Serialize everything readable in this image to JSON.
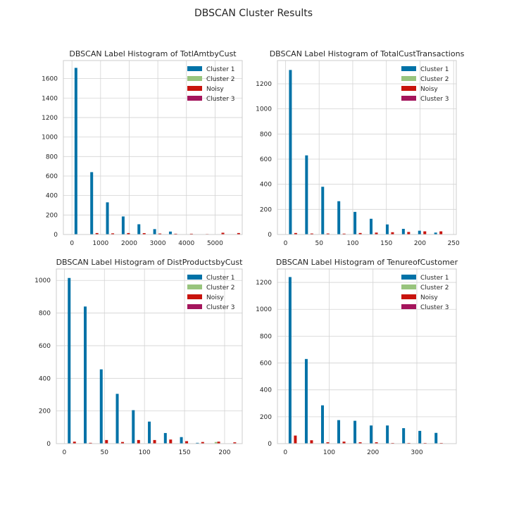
{
  "figure": {
    "suptitle": "DBSCAN Cluster Results"
  },
  "legend_colors": {
    "Cluster 1": "#0072a7",
    "Cluster 2": "#98c47d",
    "Noisy": "#c8130d",
    "Cluster 3": "#a4155c"
  },
  "chart_data": [
    {
      "type": "bar",
      "title": "DBSCAN Label Histogram of TotlAmtbyCust",
      "xlabel": "",
      "ylabel": "",
      "xlim": [
        -300,
        5950
      ],
      "ylim": [
        0,
        1785
      ],
      "xticks": [
        0,
        1000,
        2000,
        3000,
        4000,
        5000
      ],
      "yticks": [
        0,
        200,
        400,
        600,
        800,
        1000,
        1200,
        1400,
        1600
      ],
      "grid": true,
      "legend_position": "top-right",
      "legend": [
        "Cluster 1",
        "Cluster 2",
        "Noisy",
        "Cluster 3"
      ],
      "bins_x": [
        250,
        800,
        1350,
        1900,
        2450,
        3000,
        3550,
        4100,
        4650,
        5200,
        5750
      ],
      "series": [
        {
          "name": "Cluster 1",
          "values": [
            1710,
            640,
            330,
            185,
            105,
            55,
            30,
            0,
            0,
            0,
            0
          ]
        },
        {
          "name": "Cluster 2",
          "values": [
            0,
            0,
            0,
            0,
            0,
            0,
            0,
            0,
            0,
            0,
            0
          ]
        },
        {
          "name": "Noisy",
          "values": [
            0,
            15,
            12,
            15,
            14,
            10,
            8,
            8,
            5,
            18,
            15
          ]
        },
        {
          "name": "Cluster 3",
          "values": [
            0,
            0,
            0,
            0,
            0,
            0,
            0,
            0,
            0,
            0,
            0
          ]
        }
      ]
    },
    {
      "type": "bar",
      "title": "DBSCAN Label Histogram of TotalCustTransactions",
      "xlabel": "",
      "ylabel": "",
      "xlim": [
        -12,
        254
      ],
      "ylim": [
        0,
        1385
      ],
      "xticks": [
        0,
        50,
        100,
        150,
        200,
        250
      ],
      "yticks": [
        0,
        200,
        400,
        600,
        800,
        1000,
        1200
      ],
      "grid": true,
      "legend_position": "top-right",
      "legend": [
        "Cluster 1",
        "Cluster 2",
        "Noisy",
        "Cluster 3"
      ],
      "bins_x": [
        12,
        36,
        60,
        84,
        108,
        132,
        156,
        180,
        204,
        228
      ],
      "series": [
        {
          "name": "Cluster 1",
          "values": [
            1310,
            630,
            380,
            265,
            180,
            125,
            80,
            45,
            30,
            15
          ]
        },
        {
          "name": "Cluster 2",
          "values": [
            0,
            0,
            0,
            0,
            0,
            0,
            0,
            0,
            0,
            0
          ]
        },
        {
          "name": "Noisy",
          "values": [
            12,
            8,
            8,
            7,
            12,
            15,
            18,
            20,
            25,
            25
          ]
        },
        {
          "name": "Cluster 3",
          "values": [
            0,
            0,
            0,
            0,
            0,
            0,
            0,
            0,
            0,
            0
          ]
        }
      ]
    },
    {
      "type": "bar",
      "title": "DBSCAN Label Histogram of DistProductsbyCust",
      "xlabel": "",
      "ylabel": "",
      "xlim": [
        -10,
        222
      ],
      "ylim": [
        0,
        1070
      ],
      "xticks": [
        0,
        50,
        100,
        150,
        200
      ],
      "yticks": [
        0,
        200,
        400,
        600,
        800,
        1000
      ],
      "grid": true,
      "legend_position": "top-right",
      "legend": [
        "Cluster 1",
        "Cluster 2",
        "Noisy",
        "Cluster 3"
      ],
      "bins_x": [
        10,
        30,
        50,
        70,
        90,
        110,
        130,
        150,
        170,
        190,
        210
      ],
      "series": [
        {
          "name": "Cluster 1",
          "values": [
            1015,
            840,
            455,
            305,
            205,
            135,
            65,
            40,
            5,
            0,
            0
          ]
        },
        {
          "name": "Cluster 2",
          "values": [
            0,
            0,
            0,
            0,
            0,
            0,
            0,
            0,
            0,
            10,
            0
          ]
        },
        {
          "name": "Noisy",
          "values": [
            12,
            5,
            22,
            10,
            22,
            22,
            25,
            15,
            10,
            12,
            8
          ]
        },
        {
          "name": "Cluster 3",
          "values": [
            0,
            0,
            0,
            0,
            0,
            0,
            0,
            0,
            0,
            0,
            0
          ]
        }
      ]
    },
    {
      "type": "bar",
      "title": "DBSCAN Label Histogram of TenureofCustomer",
      "xlabel": "",
      "ylabel": "",
      "xlim": [
        -18,
        390
      ],
      "ylim": [
        0,
        1300
      ],
      "xticks": [
        0,
        100,
        200,
        300
      ],
      "yticks": [
        0,
        200,
        400,
        600,
        800,
        1000,
        1200
      ],
      "grid": true,
      "legend_position": "top-right",
      "legend": [
        "Cluster 1",
        "Cluster 2",
        "Noisy",
        "Cluster 3"
      ],
      "bins_x": [
        18,
        55,
        92,
        129,
        166,
        203,
        240,
        277,
        314,
        351
      ],
      "series": [
        {
          "name": "Cluster 1",
          "values": [
            1240,
            630,
            285,
            175,
            170,
            135,
            135,
            115,
            95,
            80
          ]
        },
        {
          "name": "Cluster 2",
          "values": [
            0,
            0,
            0,
            0,
            0,
            0,
            0,
            0,
            0,
            0
          ]
        },
        {
          "name": "Noisy",
          "values": [
            60,
            25,
            10,
            15,
            10,
            10,
            5,
            5,
            5,
            5
          ]
        },
        {
          "name": "Cluster 3",
          "values": [
            0,
            0,
            0,
            0,
            0,
            0,
            0,
            0,
            0,
            0
          ]
        }
      ]
    }
  ]
}
